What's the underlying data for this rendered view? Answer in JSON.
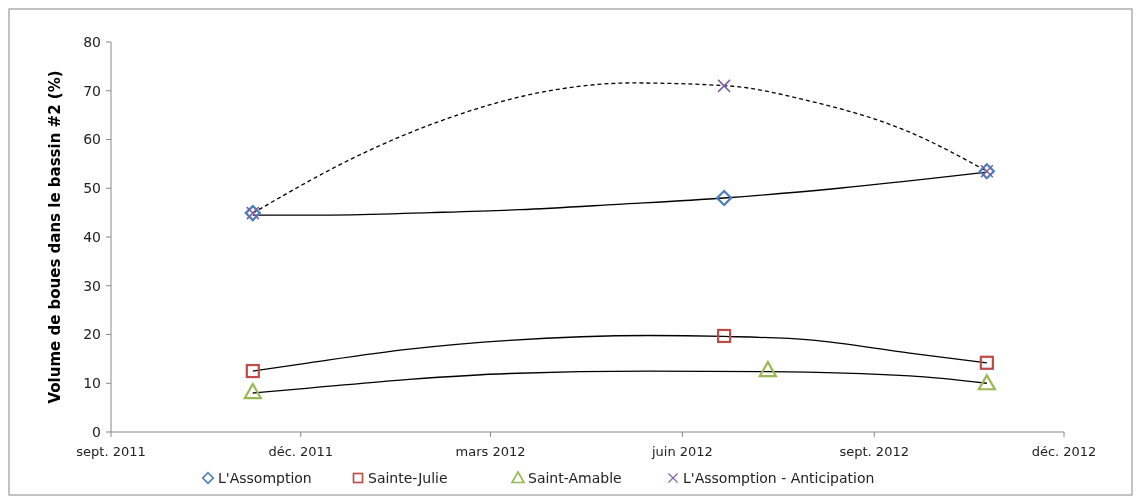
{
  "chart_data": {
    "type": "scatter",
    "ylabel": "Volume de boues dans le bassin #2 (%)",
    "xlim": [
      "2011-09-01",
      "2012-12-01"
    ],
    "xticks": [
      {
        "value": "2011-09-01",
        "label": "sept. 2011"
      },
      {
        "value": "2011-12-01",
        "label": "déc. 2011"
      },
      {
        "value": "2012-03-01",
        "label": "mars 2012"
      },
      {
        "value": "2012-06-01",
        "label": "juin 2012"
      },
      {
        "value": "2012-09-01",
        "label": "sept. 2012"
      },
      {
        "value": "2012-12-01",
        "label": "déc. 2012"
      }
    ],
    "ylim": [
      0,
      80
    ],
    "yticks": [
      0,
      10,
      20,
      30,
      40,
      50,
      60,
      70,
      80
    ],
    "grid": false,
    "legend": "bottom",
    "series": [
      {
        "type": "line",
        "color": "#000000",
        "marker": "none",
        "line_style": "solid",
        "x": [
          "2011-11-08",
          "2011-12-15",
          "2012-02-01",
          "2012-03-15",
          "2012-05-01",
          "2012-06-21",
          "2012-08-15",
          "2012-10-25"
        ],
        "values": [
          44.5,
          44.5,
          45,
          45.6,
          46.7,
          48,
          50,
          53.3
        ]
      },
      {
        "type": "line",
        "color": "#000000",
        "marker": "none",
        "line_style": "solid",
        "x": [
          "2011-11-08",
          "2011-12-05",
          "2012-01-22",
          "2012-03-10",
          "2012-05-16",
          "2012-06-21",
          "2012-08-01",
          "2012-09-18",
          "2012-10-25"
        ],
        "values": [
          12.5,
          14.2,
          17,
          18.8,
          19.8,
          19.6,
          18.9,
          16.2,
          14.2
        ]
      },
      {
        "type": "line",
        "color": "#000000",
        "marker": "none",
        "line_style": "solid",
        "x": [
          "2011-11-08",
          "2011-12-05",
          "2012-01-22",
          "2012-03-10",
          "2012-05-16",
          "2012-07-12",
          "2012-09-18",
          "2012-10-25"
        ],
        "values": [
          8,
          9,
          10.8,
          12,
          12.5,
          12.4,
          11.5,
          10
        ]
      },
      {
        "type": "line",
        "color": "#000000",
        "marker": "none",
        "line_style": "dashed",
        "x": [
          "2011-11-08",
          "2011-12-31",
          "2012-02-06",
          "2012-04-01",
          "2012-05-08",
          "2012-06-23",
          "2012-07-30",
          "2012-09-18",
          "2012-10-25"
        ],
        "values": [
          44.9,
          57.2,
          63.8,
          70.2,
          71.6,
          71,
          68.1,
          61.5,
          53.5
        ]
      },
      {
        "name": "L'Assomption",
        "color": "#4a7ebb",
        "marker": "diamond",
        "x": [
          "2011-11-08",
          "2012-06-21",
          "2012-10-25"
        ],
        "values": [
          44.9,
          48,
          53.5
        ]
      },
      {
        "name": "Sainte-Julie",
        "color": "#be4b48",
        "marker": "square",
        "x": [
          "2011-11-08",
          "2012-06-21",
          "2012-10-25"
        ],
        "values": [
          12.5,
          19.7,
          14.2
        ]
      },
      {
        "name": "Saint-Amable",
        "color": "#98b954",
        "marker": "triangle",
        "x": [
          "2011-11-08",
          "2012-07-12",
          "2012-10-25"
        ],
        "values": [
          8.2,
          12.7,
          10
        ]
      },
      {
        "name": "L'Assomption - Anticipation",
        "color": "#7d60a0",
        "marker": "cross",
        "x": [
          "2011-11-08",
          "2012-06-21",
          "2012-10-25"
        ],
        "values": [
          44.9,
          71,
          53.5
        ]
      }
    ]
  }
}
